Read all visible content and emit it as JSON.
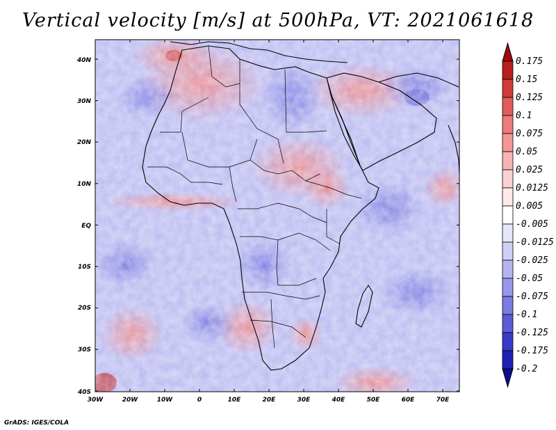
{
  "title": "Vertical velocity [m/s] at 500hPa, VT: 2021061618",
  "credit": "GrADS: IGES/COLA",
  "map": {
    "region": "Africa",
    "lat_labels": [
      "40N",
      "30N",
      "20N",
      "10N",
      "EQ",
      "10S",
      "20S",
      "30S",
      "40S"
    ],
    "lon_labels": [
      "30W",
      "20W",
      "10W",
      "0",
      "10E",
      "20E",
      "30E",
      "40E",
      "50E",
      "60E",
      "70E"
    ]
  },
  "colorbar": {
    "labels": [
      "0.175",
      "0.15",
      "0.125",
      "0.1",
      "0.075",
      "0.05",
      "0.025",
      "0.0125",
      "0.005",
      "-0.005",
      "-0.0125",
      "-0.025",
      "-0.05",
      "-0.075",
      "-0.1",
      "-0.125",
      "-0.175",
      "-0.2"
    ],
    "colors": [
      "#a00a0a",
      "#b81f1f",
      "#d03a3a",
      "#e05c5c",
      "#ec7b7b",
      "#f29898",
      "#f7b4b4",
      "#fbd0d0",
      "#fde9e9",
      "#ffffff",
      "#e7e7fb",
      "#cfcff7",
      "#b4b4f1",
      "#9898ea",
      "#7b7be2",
      "#5c5cd6",
      "#3a3ac8",
      "#2020b4",
      "#0e0e90"
    ]
  }
}
